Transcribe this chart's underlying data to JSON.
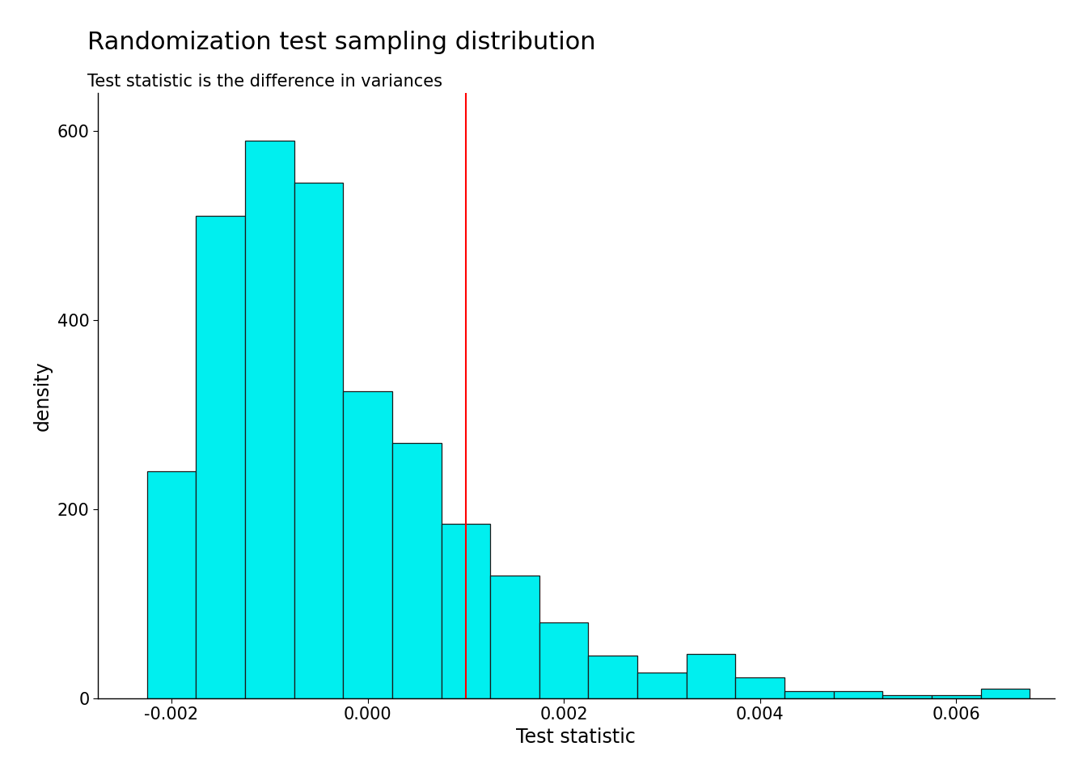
{
  "title": "Randomization test sampling distribution",
  "subtitle": "Test statistic is the difference in variances",
  "xlabel": "Test statistic",
  "ylabel": "density",
  "bar_color": "#00EFEF",
  "bar_edgecolor": "#1a1a1a",
  "vline_x": 0.001,
  "vline_color": "#FF0000",
  "background_color": "#FFFFFF",
  "bin_starts": [
    -0.00225,
    -0.00175,
    -0.00125,
    -0.00075,
    -0.00025,
    0.00025,
    0.00075,
    0.00125,
    0.00175,
    0.00225,
    0.00275,
    0.00325,
    0.00375,
    0.00425,
    0.00475,
    0.00525,
    0.00575,
    0.00625
  ],
  "bar_heights": [
    240,
    510,
    590,
    545,
    325,
    270,
    185,
    130,
    80,
    45,
    27,
    47,
    22,
    8,
    8,
    3,
    3,
    10
  ],
  "bin_width": 0.0005,
  "xlim": [
    -0.00275,
    0.007
  ],
  "ylim": [
    0,
    640
  ],
  "xticks": [
    -0.002,
    0.0,
    0.002,
    0.004,
    0.006
  ],
  "yticks": [
    0,
    200,
    400,
    600
  ],
  "title_fontsize": 22,
  "subtitle_fontsize": 15,
  "axis_label_fontsize": 17,
  "tick_fontsize": 15
}
